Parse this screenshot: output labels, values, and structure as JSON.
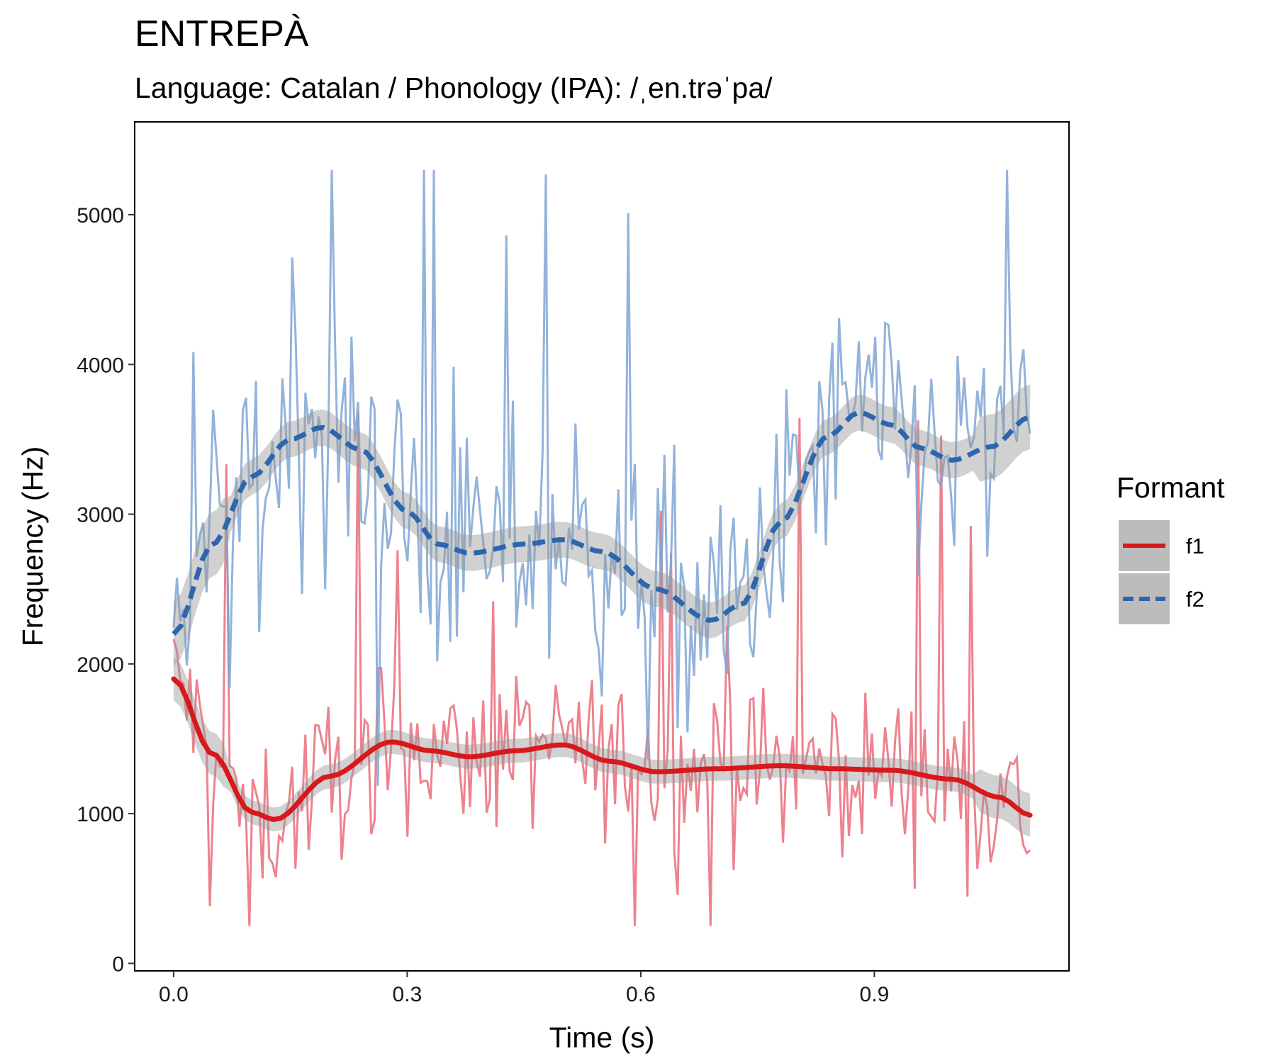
{
  "chart_data": {
    "type": "line",
    "title": "ENTREPÀ",
    "subtitle": "Language: Catalan / Phonology (IPA): /ˌen.trəˈpa/",
    "xlabel": "Time (s)",
    "ylabel": "Frequency (Hz)",
    "xlim": [
      -0.05,
      1.15
    ],
    "ylim": [
      -50,
      5620
    ],
    "x_ticks": [
      0.0,
      0.3,
      0.6,
      0.9
    ],
    "x_tick_labels": [
      "0.0",
      "0.3",
      "0.6",
      "0.9"
    ],
    "y_ticks": [
      0,
      1000,
      2000,
      3000,
      4000,
      5000
    ],
    "y_tick_labels": [
      "0",
      "1000",
      "2000",
      "3000",
      "4000",
      "5000"
    ],
    "grid": false,
    "legend": {
      "title": "Formant",
      "position": "right",
      "entries": [
        {
          "label": "f1",
          "color": "#d7191c",
          "style": "solid"
        },
        {
          "label": "f2",
          "color": "#2c66ad",
          "style": "dashed"
        }
      ]
    },
    "series": [
      {
        "name": "f1",
        "raw_color": "#ea6c7a",
        "smooth_color": "#d7191c",
        "style": "solid",
        "raw_noise_sd": 260,
        "smooth_x": [
          0.0,
          0.05,
          0.1,
          0.13,
          0.2,
          0.28,
          0.33,
          0.38,
          0.44,
          0.5,
          0.56,
          0.62,
          0.7,
          0.78,
          0.85,
          0.92,
          1.0,
          1.06,
          1.1
        ],
        "smooth_y": [
          1900,
          1400,
          1010,
          960,
          1250,
          1480,
          1420,
          1380,
          1420,
          1460,
          1350,
          1280,
          1300,
          1320,
          1300,
          1290,
          1230,
          1110,
          990
        ],
        "ci_halfwidth": 80
      },
      {
        "name": "f2",
        "raw_color": "#7fa6d4",
        "smooth_color": "#2c66ad",
        "style": "dashed",
        "raw_noise_sd": 420,
        "smooth_x": [
          0.0,
          0.05,
          0.1,
          0.15,
          0.19,
          0.24,
          0.3,
          0.34,
          0.38,
          0.45,
          0.5,
          0.55,
          0.62,
          0.69,
          0.73,
          0.78,
          0.84,
          0.88,
          0.92,
          0.96,
          1.0,
          1.05,
          1.1
        ],
        "smooth_y": [
          2200,
          2800,
          3250,
          3500,
          3580,
          3430,
          3020,
          2800,
          2740,
          2800,
          2830,
          2750,
          2500,
          2290,
          2400,
          2950,
          3520,
          3680,
          3600,
          3440,
          3360,
          3450,
          3650
        ],
        "ci_halfwidth": 120
      }
    ]
  }
}
